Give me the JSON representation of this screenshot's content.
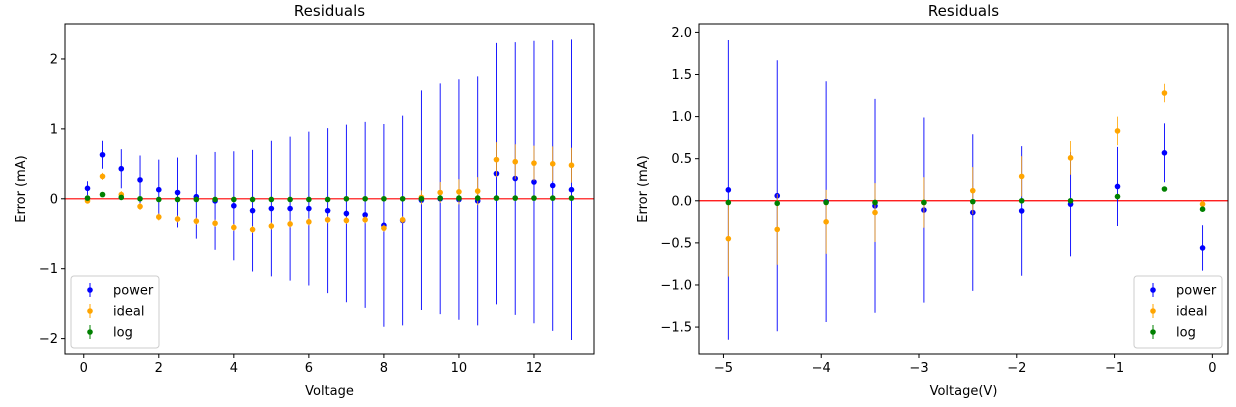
{
  "chart_data": [
    {
      "type": "scatter",
      "title": "Residuals",
      "xlabel": "Voltage",
      "ylabel": "Error (mA)",
      "xlim": [
        -0.5,
        13.6
      ],
      "ylim": [
        -2.22,
        2.5
      ],
      "xticks": [
        0,
        2,
        4,
        6,
        8,
        10,
        12
      ],
      "yticks": [
        -2,
        -1,
        0,
        1,
        2
      ],
      "legend_position": "lower-left",
      "reference_line": {
        "y": 0,
        "color": "#ff0000"
      },
      "x": [
        0.1,
        0.5,
        1.0,
        1.5,
        2.0,
        2.5,
        3.0,
        3.5,
        4.0,
        4.5,
        5.0,
        5.5,
        6.0,
        6.5,
        7.0,
        7.5,
        8.0,
        8.5,
        9.0,
        9.5,
        10.0,
        10.5,
        11.0,
        11.5,
        12.0,
        12.5,
        13.0
      ],
      "series": [
        {
          "name": "power",
          "color": "#0000ff",
          "values": [
            0.15,
            0.63,
            0.43,
            0.27,
            0.13,
            0.09,
            0.03,
            -0.03,
            -0.1,
            -0.17,
            -0.14,
            -0.14,
            -0.14,
            -0.17,
            -0.21,
            -0.23,
            -0.38,
            -0.31,
            -0.02,
            0.0,
            -0.01,
            -0.03,
            0.36,
            0.29,
            0.24,
            0.19,
            0.13
          ],
          "errors": [
            0.1,
            0.2,
            0.28,
            0.35,
            0.43,
            0.5,
            0.6,
            0.7,
            0.78,
            0.87,
            0.97,
            1.03,
            1.1,
            1.18,
            1.27,
            1.33,
            1.45,
            1.5,
            1.57,
            1.65,
            1.72,
            1.78,
            1.87,
            1.95,
            2.02,
            2.08,
            2.15
          ]
        },
        {
          "name": "ideal",
          "color": "#ffa500",
          "values": [
            -0.03,
            0.32,
            0.06,
            -0.11,
            -0.26,
            -0.29,
            -0.32,
            -0.35,
            -0.41,
            -0.44,
            -0.39,
            -0.36,
            -0.33,
            -0.3,
            -0.31,
            -0.3,
            -0.42,
            -0.3,
            0.02,
            0.09,
            0.1,
            0.11,
            0.56,
            0.53,
            0.51,
            0.5,
            0.48
          ],
          "errors": [
            0.04,
            0.05,
            0.05,
            0.05,
            0.05,
            0.05,
            0.05,
            0.05,
            0.05,
            0.05,
            0.05,
            0.05,
            0.05,
            0.05,
            0.05,
            0.05,
            0.05,
            0.05,
            0.1,
            0.15,
            0.18,
            0.2,
            0.25,
            0.25,
            0.25,
            0.25,
            0.25
          ]
        },
        {
          "name": "log",
          "color": "#008000",
          "values": [
            0.01,
            0.06,
            0.02,
            0.0,
            -0.01,
            -0.01,
            -0.01,
            -0.01,
            -0.01,
            -0.01,
            -0.01,
            -0.01,
            -0.01,
            -0.01,
            0.0,
            0.0,
            0.0,
            0.0,
            0.0,
            0.01,
            0.01,
            0.01,
            0.01,
            0.01,
            0.01,
            0.01,
            0.01
          ],
          "errors": [
            0.02,
            0.02,
            0.02,
            0.02,
            0.02,
            0.02,
            0.02,
            0.02,
            0.02,
            0.02,
            0.02,
            0.02,
            0.02,
            0.02,
            0.02,
            0.02,
            0.02,
            0.02,
            0.02,
            0.02,
            0.02,
            0.02,
            0.02,
            0.02,
            0.02,
            0.02,
            0.02
          ]
        }
      ]
    },
    {
      "type": "scatter",
      "title": "Residuals",
      "xlabel": "Voltage(V)",
      "ylabel": "Error (mA)",
      "xlim": [
        -5.25,
        0.16
      ],
      "ylim": [
        -1.82,
        2.1
      ],
      "xticks": [
        -5,
        -4,
        -3,
        -2,
        -1,
        0
      ],
      "yticks": [
        -1.5,
        -1.0,
        -0.5,
        0.0,
        0.5,
        1.0,
        1.5,
        2.0
      ],
      "legend_position": "lower-right",
      "reference_line": {
        "y": 0,
        "color": "#ff0000"
      },
      "x": [
        -4.95,
        -4.45,
        -3.95,
        -3.45,
        -2.95,
        -2.45,
        -1.95,
        -1.45,
        -0.97,
        -0.49,
        -0.1
      ],
      "series": [
        {
          "name": "power",
          "color": "#0000ff",
          "values": [
            0.13,
            0.06,
            -0.01,
            -0.06,
            -0.11,
            -0.14,
            -0.12,
            -0.04,
            0.17,
            0.57,
            -0.56
          ],
          "errors": [
            1.78,
            1.61,
            1.43,
            1.27,
            1.1,
            0.93,
            0.77,
            0.62,
            0.47,
            0.35,
            0.27
          ]
        },
        {
          "name": "ideal",
          "color": "#ffa500",
          "values": [
            -0.45,
            -0.34,
            -0.25,
            -0.14,
            -0.02,
            0.12,
            0.29,
            0.51,
            0.83,
            1.28,
            -0.04
          ],
          "errors": [
            0.45,
            0.42,
            0.38,
            0.35,
            0.3,
            0.28,
            0.24,
            0.2,
            0.17,
            0.11,
            0.05
          ]
        },
        {
          "name": "log",
          "color": "#008000",
          "values": [
            -0.02,
            -0.03,
            -0.02,
            -0.02,
            -0.02,
            -0.01,
            0.0,
            0.0,
            0.05,
            0.14,
            -0.1
          ],
          "errors": [
            0.02,
            0.02,
            0.02,
            0.02,
            0.02,
            0.02,
            0.02,
            0.02,
            0.02,
            0.02,
            0.02
          ]
        }
      ]
    }
  ]
}
